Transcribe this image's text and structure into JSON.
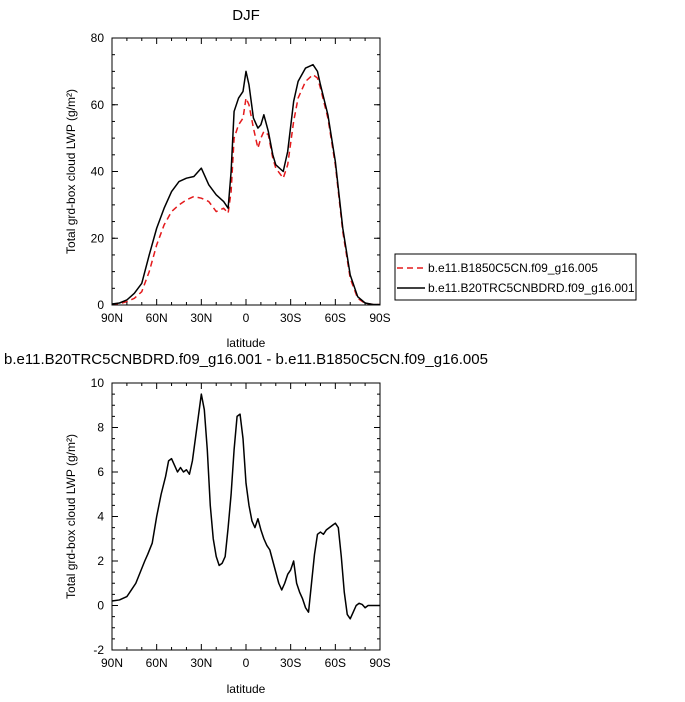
{
  "colors": {
    "series_a": "#e41a1c",
    "series_b": "#000000"
  },
  "chart_data": [
    {
      "type": "line",
      "title": "DJF",
      "xlabel": "latitude",
      "ylabel": "Total grd-box cloud LWP (g/m²)",
      "xlim": [
        90,
        -90
      ],
      "ylim": [
        0,
        80
      ],
      "xticks": [
        90,
        60,
        30,
        0,
        -30,
        -60,
        -90
      ],
      "xticklabels": [
        "90N",
        "60N",
        "30N",
        "0",
        "30S",
        "60S",
        "90S"
      ],
      "yticks": [
        0,
        20,
        40,
        60,
        80
      ],
      "yticklabels": [
        "0",
        "20",
        "40",
        "60",
        "80"
      ],
      "legend_position": "right",
      "series": [
        {
          "name": "b.e11.B1850C5CN.f09_g16.005",
          "style": "dashed",
          "color": "#e41a1c",
          "x": [
            90,
            85,
            80,
            75,
            70,
            65,
            60,
            55,
            50,
            45,
            40,
            35,
            30,
            25,
            20,
            15,
            12,
            10,
            8,
            5,
            2,
            0,
            -2,
            -5,
            -8,
            -10,
            -12,
            -15,
            -18,
            -20,
            -25,
            -28,
            -32,
            -35,
            -40,
            -45,
            -48,
            -50,
            -55,
            -60,
            -65,
            -70,
            -75,
            -80,
            -85,
            -90
          ],
          "y": [
            0.2,
            0.4,
            1.0,
            2.0,
            4.0,
            10.0,
            18.0,
            24.0,
            28.0,
            30.0,
            31.5,
            32.5,
            32.0,
            31.0,
            28.0,
            29.0,
            27.5,
            34.0,
            50.0,
            54.0,
            56.0,
            62.0,
            60.0,
            53.0,
            47.0,
            50.0,
            52.0,
            51.0,
            44.0,
            41.0,
            38.0,
            42.0,
            55.0,
            62.0,
            67.0,
            69.0,
            68.0,
            65.0,
            56.0,
            42.0,
            22.0,
            8.0,
            2.0,
            0.5,
            0.2,
            0.1
          ]
        },
        {
          "name": "b.e11.B20TRC5CNBDRD.f09_g16.001",
          "style": "solid",
          "color": "#000000",
          "x": [
            90,
            85,
            80,
            75,
            70,
            65,
            60,
            55,
            50,
            45,
            40,
            35,
            30,
            25,
            20,
            15,
            12,
            10,
            8,
            5,
            2,
            0,
            -2,
            -5,
            -8,
            -10,
            -12,
            -15,
            -18,
            -20,
            -25,
            -28,
            -32,
            -35,
            -40,
            -45,
            -48,
            -50,
            -55,
            -60,
            -65,
            -70,
            -75,
            -80,
            -85,
            -90
          ],
          "y": [
            0.3,
            0.6,
            1.5,
            3.5,
            6.5,
            15.0,
            23.0,
            29.0,
            34.0,
            37.0,
            38.0,
            38.5,
            41.0,
            36.0,
            33.0,
            31.0,
            29.0,
            40.0,
            58.0,
            62.0,
            64.0,
            70.0,
            66.0,
            56.0,
            53.0,
            54.0,
            57.0,
            52.0,
            45.0,
            42.0,
            40.0,
            46.0,
            61.0,
            67.0,
            71.0,
            72.0,
            70.0,
            66.0,
            57.0,
            43.0,
            23.0,
            9.0,
            2.5,
            0.6,
            0.2,
            0.1
          ]
        }
      ]
    },
    {
      "type": "line",
      "title": "b.e11.B20TRC5CNBDRD.f09_g16.001 - b.e11.B1850C5CN.f09_g16.005",
      "xlabel": "latitude",
      "ylabel": "Total grd-box cloud LWP (g/m²)",
      "xlim": [
        90,
        -90
      ],
      "ylim": [
        -2,
        10
      ],
      "xticks": [
        90,
        60,
        30,
        0,
        -30,
        -60,
        -90
      ],
      "xticklabels": [
        "90N",
        "60N",
        "30N",
        "0",
        "30S",
        "60S",
        "90S"
      ],
      "yticks": [
        -2,
        0,
        2,
        4,
        6,
        8,
        10
      ],
      "yticklabels": [
        "-2",
        "0",
        "2",
        "4",
        "6",
        "8",
        "10"
      ],
      "series": [
        {
          "style": "solid",
          "color": "#000000",
          "x": [
            90,
            85,
            80,
            77,
            74,
            71,
            68,
            66,
            63,
            60,
            57,
            54,
            52,
            50,
            48,
            46,
            44,
            42,
            40,
            38,
            36,
            34,
            32,
            30,
            28,
            26,
            24,
            22,
            20,
            18,
            16,
            14,
            12,
            10,
            8,
            6,
            4,
            2,
            0,
            -2,
            -4,
            -6,
            -8,
            -10,
            -12,
            -14,
            -16,
            -18,
            -20,
            -22,
            -24,
            -26,
            -28,
            -30,
            -32,
            -34,
            -36,
            -38,
            -40,
            -42,
            -44,
            -46,
            -48,
            -50,
            -52,
            -54,
            -56,
            -58,
            -60,
            -62,
            -64,
            -66,
            -68,
            -70,
            -72,
            -74,
            -76,
            -78,
            -80,
            -82,
            -85,
            -90
          ],
          "y": [
            0.2,
            0.25,
            0.4,
            0.7,
            1.0,
            1.5,
            2.0,
            2.3,
            2.8,
            4.0,
            5.0,
            5.8,
            6.5,
            6.6,
            6.3,
            6.0,
            6.2,
            6.0,
            6.1,
            5.9,
            6.5,
            7.5,
            8.5,
            9.5,
            8.8,
            7.0,
            4.5,
            3.0,
            2.2,
            1.8,
            1.9,
            2.2,
            3.5,
            5.0,
            7.0,
            8.5,
            8.6,
            7.5,
            5.5,
            4.5,
            3.8,
            3.5,
            3.9,
            3.4,
            3.0,
            2.7,
            2.5,
            2.0,
            1.5,
            1.0,
            0.7,
            1.0,
            1.4,
            1.6,
            2.0,
            1.0,
            0.6,
            0.3,
            -0.1,
            -0.3,
            1.0,
            2.3,
            3.2,
            3.3,
            3.2,
            3.4,
            3.5,
            3.6,
            3.7,
            3.5,
            2.2,
            0.6,
            -0.4,
            -0.6,
            -0.3,
            0.0,
            0.1,
            0.05,
            -0.1,
            0.0,
            0.0,
            0.0
          ]
        }
      ]
    }
  ]
}
